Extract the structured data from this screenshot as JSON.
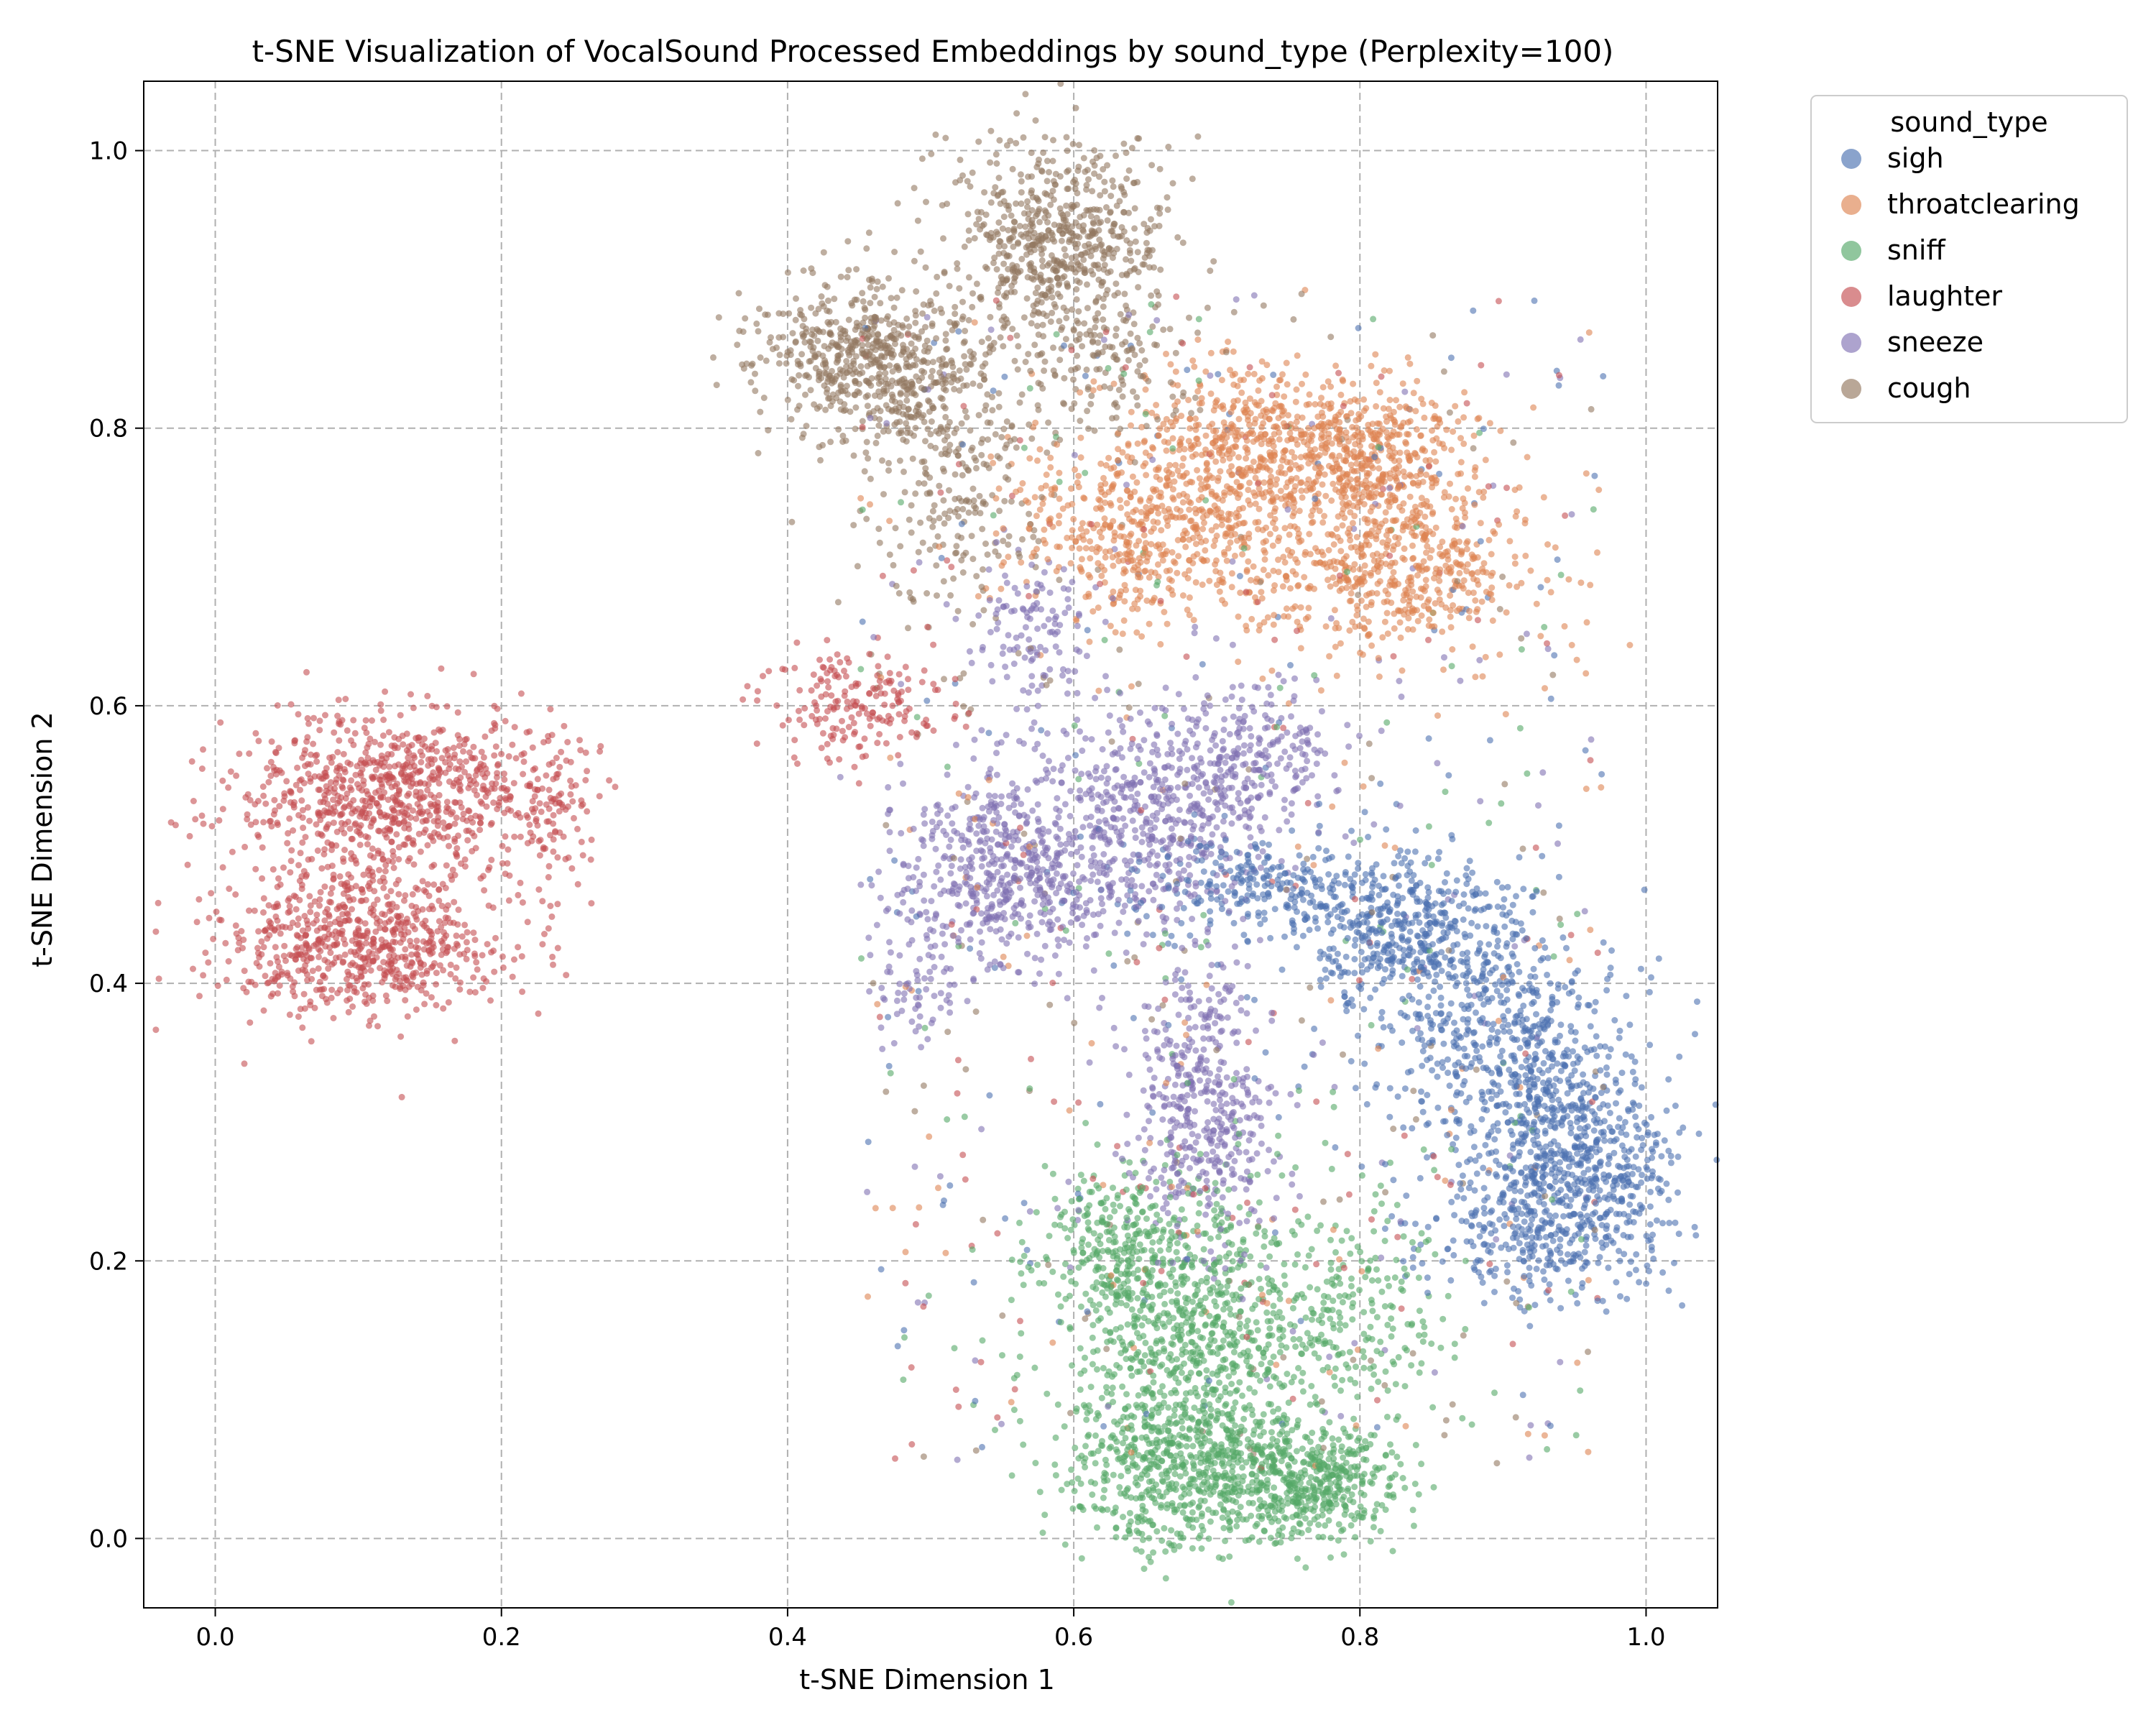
{
  "chart_data": {
    "type": "scatter",
    "title": "t-SNE Visualization of VocalSound Processed Embeddings by sound_type (Perplexity=100)",
    "xlabel": "t-SNE Dimension 1",
    "ylabel": "t-SNE Dimension 2",
    "xlim": [
      -0.05,
      1.05
    ],
    "ylim": [
      -0.05,
      1.05
    ],
    "xticks": [
      "0.0",
      "0.2",
      "0.4",
      "0.6",
      "0.8",
      "1.0"
    ],
    "yticks": [
      "0.0",
      "0.2",
      "0.4",
      "0.6",
      "0.8",
      "1.0"
    ],
    "grid": true,
    "legend": {
      "title": "sound_type",
      "placement": "outside-upper-right"
    },
    "series": [
      {
        "name": "sigh",
        "color": "#4c72b0",
        "clusters": [
          {
            "cx": 0.84,
            "cy": 0.43,
            "sx": 0.04,
            "sy": 0.03,
            "n": 500
          },
          {
            "cx": 0.91,
            "cy": 0.35,
            "sx": 0.04,
            "sy": 0.04,
            "n": 500
          },
          {
            "cx": 0.95,
            "cy": 0.27,
            "sx": 0.035,
            "sy": 0.04,
            "n": 550
          },
          {
            "cx": 0.74,
            "cy": 0.47,
            "sx": 0.05,
            "sy": 0.02,
            "n": 280
          },
          {
            "cx": 0.92,
            "cy": 0.22,
            "sx": 0.04,
            "sy": 0.025,
            "n": 250
          }
        ]
      },
      {
        "name": "throatclearing",
        "color": "#dd8452",
        "clusters": [
          {
            "cx": 0.81,
            "cy": 0.78,
            "sx": 0.035,
            "sy": 0.025,
            "n": 400
          },
          {
            "cx": 0.82,
            "cy": 0.7,
            "sx": 0.05,
            "sy": 0.03,
            "n": 550
          },
          {
            "cx": 0.66,
            "cy": 0.73,
            "sx": 0.05,
            "sy": 0.035,
            "n": 600
          },
          {
            "cx": 0.73,
            "cy": 0.79,
            "sx": 0.04,
            "sy": 0.03,
            "n": 400
          }
        ]
      },
      {
        "name": "sniff",
        "color": "#55a868",
        "clusters": [
          {
            "cx": 0.68,
            "cy": 0.15,
            "sx": 0.04,
            "sy": 0.05,
            "n": 700
          },
          {
            "cx": 0.68,
            "cy": 0.05,
            "sx": 0.045,
            "sy": 0.03,
            "n": 650
          },
          {
            "cx": 0.77,
            "cy": 0.04,
            "sx": 0.03,
            "sy": 0.02,
            "n": 400
          },
          {
            "cx": 0.63,
            "cy": 0.21,
            "sx": 0.03,
            "sy": 0.03,
            "n": 250
          },
          {
            "cx": 0.78,
            "cy": 0.16,
            "sx": 0.04,
            "sy": 0.04,
            "n": 250
          }
        ]
      },
      {
        "name": "laughter",
        "color": "#c44e52",
        "clusters": [
          {
            "cx": 0.12,
            "cy": 0.535,
            "sx": 0.05,
            "sy": 0.03,
            "n": 800
          },
          {
            "cx": 0.1,
            "cy": 0.43,
            "sx": 0.05,
            "sy": 0.025,
            "n": 700
          },
          {
            "cx": 0.23,
            "cy": 0.53,
            "sx": 0.02,
            "sy": 0.03,
            "n": 120
          },
          {
            "cx": 0.45,
            "cy": 0.6,
            "sx": 0.03,
            "sy": 0.02,
            "n": 180
          }
        ]
      },
      {
        "name": "sneeze",
        "color": "#8172b3",
        "clusters": [
          {
            "cx": 0.55,
            "cy": 0.48,
            "sx": 0.04,
            "sy": 0.035,
            "n": 550
          },
          {
            "cx": 0.65,
            "cy": 0.52,
            "sx": 0.04,
            "sy": 0.04,
            "n": 450
          },
          {
            "cx": 0.69,
            "cy": 0.31,
            "sx": 0.025,
            "sy": 0.05,
            "n": 450
          },
          {
            "cx": 0.72,
            "cy": 0.56,
            "sx": 0.03,
            "sy": 0.025,
            "n": 250
          },
          {
            "cx": 0.57,
            "cy": 0.65,
            "sx": 0.02,
            "sy": 0.03,
            "n": 120
          },
          {
            "cx": 0.49,
            "cy": 0.4,
            "sx": 0.02,
            "sy": 0.02,
            "n": 60
          }
        ]
      },
      {
        "name": "cough",
        "color": "#937860",
        "clusters": [
          {
            "cx": 0.59,
            "cy": 0.94,
            "sx": 0.035,
            "sy": 0.035,
            "n": 600
          },
          {
            "cx": 0.46,
            "cy": 0.85,
            "sx": 0.04,
            "sy": 0.03,
            "n": 650
          },
          {
            "cx": 0.52,
            "cy": 0.76,
            "sx": 0.03,
            "sy": 0.05,
            "n": 250
          },
          {
            "cx": 0.62,
            "cy": 0.85,
            "sx": 0.03,
            "sy": 0.03,
            "n": 150
          }
        ]
      }
    ],
    "noise": {
      "n": 900
    }
  }
}
